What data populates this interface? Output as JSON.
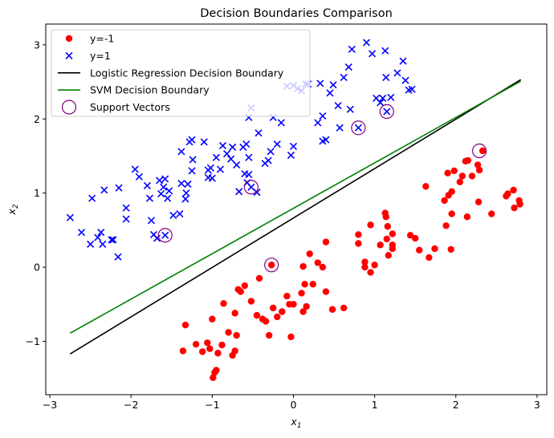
{
  "chart_data": {
    "type": "scatter",
    "title": "Decision Boundaries Comparison",
    "xlabel": "x",
    "xlabel_sub": "1",
    "ylabel": "x",
    "ylabel_sub": "2",
    "xlim": [
      -3.05,
      3.12
    ],
    "ylim": [
      -1.72,
      3.28
    ],
    "xticks": [
      -3,
      -2,
      -1,
      0,
      1,
      2,
      3
    ],
    "yticks": [
      -1,
      0,
      1,
      2,
      3
    ],
    "legend_position": "top-left",
    "grid": false,
    "series": [
      {
        "name": "y=-1",
        "marker": "circle",
        "color": "#ff0000",
        "points": [
          [
            -1.36,
            -1.13
          ],
          [
            -1.33,
            -0.78
          ],
          [
            -1.2,
            -1.04
          ],
          [
            -1.12,
            -1.14
          ],
          [
            -1.06,
            -1.02
          ],
          [
            -1.03,
            -1.1
          ],
          [
            -0.99,
            -1.49
          ],
          [
            -0.97,
            -1.42
          ],
          [
            -0.95,
            -1.39
          ],
          [
            -0.93,
            -1.16
          ],
          [
            -1.0,
            -0.7
          ],
          [
            -0.86,
            -0.49
          ],
          [
            -0.88,
            -1.05
          ],
          [
            -0.8,
            -0.88
          ],
          [
            -0.75,
            -1.19
          ],
          [
            -0.72,
            -1.13
          ],
          [
            -0.7,
            -0.92
          ],
          [
            -0.72,
            -0.62
          ],
          [
            -0.68,
            -0.3
          ],
          [
            -0.65,
            -0.33
          ],
          [
            -0.6,
            -0.25
          ],
          [
            -0.52,
            -0.46
          ],
          [
            -0.45,
            -0.65
          ],
          [
            -0.42,
            -0.15
          ],
          [
            -0.38,
            -0.7
          ],
          [
            -0.34,
            -0.73
          ],
          [
            -0.3,
            -0.92
          ],
          [
            -0.25,
            -0.55
          ],
          [
            -0.2,
            -0.67
          ],
          [
            -0.14,
            -0.6
          ],
          [
            -0.08,
            -0.39
          ],
          [
            -0.05,
            -0.5
          ],
          [
            -0.03,
            -0.94
          ],
          [
            0.0,
            -0.5
          ],
          [
            0.1,
            -0.35
          ],
          [
            0.12,
            0.01
          ],
          [
            0.16,
            -0.53
          ],
          [
            0.14,
            -0.23
          ],
          [
            0.2,
            0.18
          ],
          [
            0.24,
            -0.23
          ],
          [
            0.3,
            0.06
          ],
          [
            0.36,
            0.0
          ],
          [
            0.4,
            -0.33
          ],
          [
            0.48,
            -0.57
          ],
          [
            0.62,
            -0.55
          ],
          [
            0.4,
            0.34
          ],
          [
            0.8,
            0.44
          ],
          [
            0.8,
            0.32
          ],
          [
            0.88,
            0.07
          ],
          [
            0.95,
            -0.07
          ],
          [
            1.0,
            0.03
          ],
          [
            0.88,
            0.0
          ],
          [
            0.95,
            0.57
          ],
          [
            1.07,
            0.3
          ],
          [
            1.13,
            0.73
          ],
          [
            1.14,
            0.68
          ],
          [
            1.16,
            0.55
          ],
          [
            1.15,
            0.38
          ],
          [
            1.17,
            0.16
          ],
          [
            1.22,
            0.45
          ],
          [
            1.22,
            0.3
          ],
          [
            1.22,
            0.25
          ],
          [
            1.44,
            0.43
          ],
          [
            1.5,
            0.39
          ],
          [
            1.55,
            0.23
          ],
          [
            1.63,
            1.09
          ],
          [
            1.67,
            0.13
          ],
          [
            1.74,
            0.25
          ],
          [
            1.86,
            0.9
          ],
          [
            1.88,
            0.56
          ],
          [
            1.9,
            1.27
          ],
          [
            1.91,
            0.97
          ],
          [
            1.95,
            0.72
          ],
          [
            1.95,
            1.02
          ],
          [
            1.98,
            1.3
          ],
          [
            2.05,
            1.15
          ],
          [
            2.08,
            1.23
          ],
          [
            2.12,
            1.43
          ],
          [
            2.15,
            1.44
          ],
          [
            2.2,
            1.23
          ],
          [
            2.27,
            1.38
          ],
          [
            2.29,
            1.31
          ],
          [
            2.33,
            1.57
          ],
          [
            2.14,
            0.68
          ],
          [
            2.28,
            0.88
          ],
          [
            2.44,
            0.72
          ],
          [
            2.62,
            0.96
          ],
          [
            2.64,
            0.99
          ],
          [
            2.71,
            1.04
          ],
          [
            2.72,
            0.8
          ],
          [
            2.78,
            0.9
          ],
          [
            2.79,
            0.85
          ],
          [
            1.94,
            0.24
          ],
          [
            -0.27,
            0.03
          ],
          [
            0.12,
            -0.6
          ]
        ]
      },
      {
        "name": "y=1",
        "marker": "x",
        "color": "#0000ff",
        "points": [
          [
            -2.75,
            0.67
          ],
          [
            -2.61,
            0.47
          ],
          [
            -2.5,
            0.31
          ],
          [
            -2.48,
            0.93
          ],
          [
            -2.41,
            0.4
          ],
          [
            -2.37,
            0.47
          ],
          [
            -2.35,
            0.31
          ],
          [
            -2.33,
            1.04
          ],
          [
            -2.24,
            0.37
          ],
          [
            -2.22,
            0.37
          ],
          [
            -2.16,
            0.14
          ],
          [
            -2.15,
            1.07
          ],
          [
            -2.06,
            0.8
          ],
          [
            -2.06,
            0.65
          ],
          [
            -1.95,
            1.32
          ],
          [
            -1.9,
            1.22
          ],
          [
            -1.8,
            1.1
          ],
          [
            -1.77,
            0.93
          ],
          [
            -1.75,
            0.63
          ],
          [
            -1.72,
            0.44
          ],
          [
            -1.68,
            0.39
          ],
          [
            -1.65,
            1.17
          ],
          [
            -1.63,
            0.99
          ],
          [
            -1.6,
            1.08
          ],
          [
            -1.58,
            1.19
          ],
          [
            -1.55,
            0.93
          ],
          [
            -1.53,
            1.03
          ],
          [
            -1.48,
            0.7
          ],
          [
            -1.4,
            0.72
          ],
          [
            -1.38,
            1.13
          ],
          [
            -1.33,
            0.92
          ],
          [
            -1.32,
            1.0
          ],
          [
            -1.3,
            1.12
          ],
          [
            -1.25,
            1.3
          ],
          [
            -1.24,
            1.45
          ],
          [
            -1.38,
            1.56
          ],
          [
            -1.28,
            1.69
          ],
          [
            -1.25,
            1.72
          ],
          [
            -1.1,
            1.69
          ],
          [
            -1.05,
            1.31
          ],
          [
            -1.05,
            1.21
          ],
          [
            -1.0,
            1.2
          ],
          [
            -1.02,
            1.34
          ],
          [
            -0.95,
            1.48
          ],
          [
            -0.9,
            1.32
          ],
          [
            -0.87,
            1.64
          ],
          [
            -0.82,
            1.53
          ],
          [
            -0.77,
            1.46
          ],
          [
            -0.75,
            1.62
          ],
          [
            -0.7,
            1.38
          ],
          [
            -0.67,
            1.02
          ],
          [
            -0.62,
            1.62
          ],
          [
            -0.6,
            1.26
          ],
          [
            -0.58,
            1.66
          ],
          [
            -0.55,
            2.02
          ],
          [
            -0.55,
            1.25
          ],
          [
            -0.57,
            1.14
          ],
          [
            -0.52,
            1.08
          ],
          [
            -0.45,
            1.01
          ],
          [
            -0.55,
            1.48
          ],
          [
            -0.43,
            1.81
          ],
          [
            -0.35,
            1.4
          ],
          [
            -0.31,
            1.44
          ],
          [
            -0.28,
            1.56
          ],
          [
            -0.25,
            2.02
          ],
          [
            -0.15,
            1.95
          ],
          [
            -0.2,
            1.66
          ],
          [
            -0.03,
            1.51
          ],
          [
            0.0,
            1.63
          ],
          [
            -0.08,
            2.44
          ],
          [
            0.0,
            2.45
          ],
          [
            0.05,
            2.41
          ],
          [
            0.1,
            2.38
          ],
          [
            0.15,
            2.47
          ],
          [
            0.18,
            2.47
          ],
          [
            0.3,
            1.95
          ],
          [
            0.33,
            2.48
          ],
          [
            0.36,
            2.04
          ],
          [
            0.36,
            1.7
          ],
          [
            0.4,
            1.72
          ],
          [
            0.45,
            2.35
          ],
          [
            0.49,
            2.46
          ],
          [
            0.55,
            2.18
          ],
          [
            0.62,
            2.56
          ],
          [
            0.68,
            2.7
          ],
          [
            0.57,
            1.88
          ],
          [
            0.7,
            2.13
          ],
          [
            0.72,
            2.94
          ],
          [
            0.8,
            1.88
          ],
          [
            0.9,
            3.03
          ],
          [
            0.97,
            2.88
          ],
          [
            1.02,
            2.28
          ],
          [
            1.07,
            2.22
          ],
          [
            1.1,
            2.28
          ],
          [
            1.13,
            2.92
          ],
          [
            1.14,
            2.56
          ],
          [
            1.15,
            2.1
          ],
          [
            1.2,
            2.29
          ],
          [
            1.28,
            2.62
          ],
          [
            1.35,
            2.78
          ],
          [
            1.38,
            2.52
          ],
          [
            1.42,
            2.39
          ],
          [
            1.46,
            2.4
          ],
          [
            -1.58,
            0.43
          ],
          [
            -0.52,
            2.15
          ]
        ]
      },
      {
        "name": "Logistic Regression Decision Boundary",
        "type": "line",
        "color": "#000000",
        "points": [
          [
            -2.75,
            -1.17
          ],
          [
            2.8,
            2.53
          ]
        ]
      },
      {
        "name": "SVM Decision Boundary",
        "type": "line",
        "color": "#008000",
        "points": [
          [
            -2.75,
            -0.89
          ],
          [
            2.8,
            2.51
          ]
        ]
      },
      {
        "name": "Support Vectors",
        "marker": "open-circle",
        "color": "#800080",
        "points": [
          [
            -0.27,
            0.03
          ],
          [
            2.29,
            1.57
          ],
          [
            -1.58,
            0.43
          ],
          [
            -0.52,
            1.08
          ],
          [
            0.8,
            1.88
          ],
          [
            1.15,
            2.1
          ]
        ]
      }
    ]
  }
}
